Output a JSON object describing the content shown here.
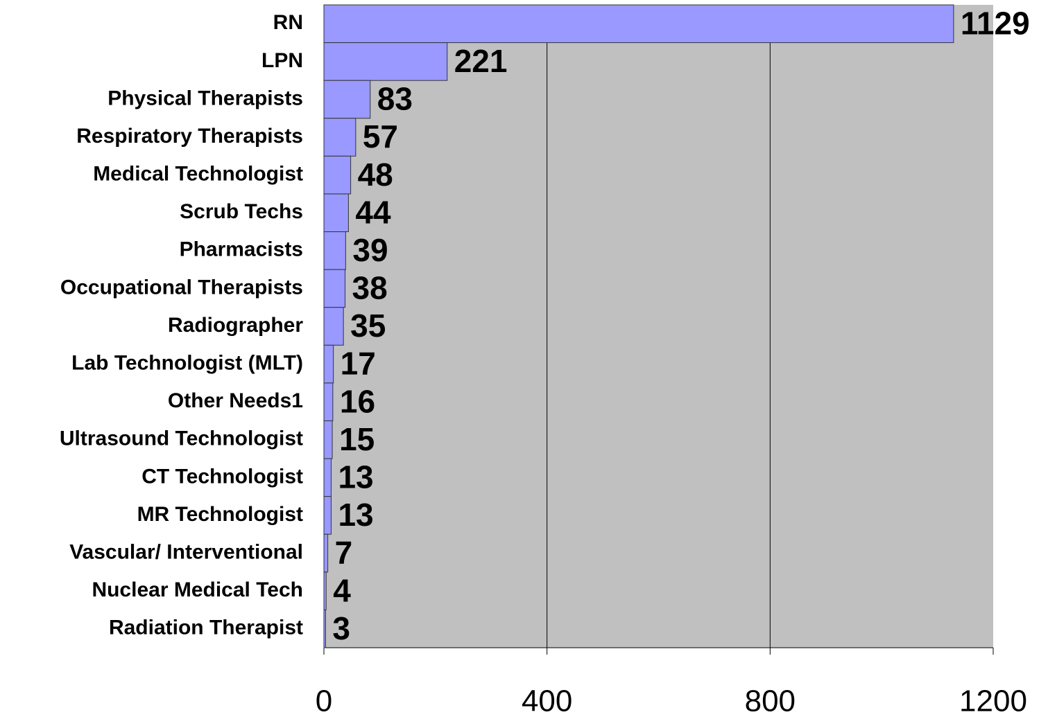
{
  "chart_data": {
    "type": "bar",
    "horizontal": true,
    "categories": [
      "RN",
      "LPN",
      "Physical Therapists",
      "Respiratory Therapists",
      "Medical Technologist",
      "Scrub Techs",
      "Pharmacists",
      "Occupational Therapists",
      "Radiographer",
      "Lab Technologist (MLT)",
      "Other Needs1",
      "Ultrasound Technologist",
      "CT Technologist",
      "MR Technologist",
      "Vascular/ Interventional",
      "Nuclear Medical Tech",
      "Radiation Therapist"
    ],
    "values": [
      1129,
      221,
      83,
      57,
      48,
      44,
      39,
      38,
      35,
      17,
      16,
      15,
      13,
      13,
      7,
      4,
      3
    ],
    "color": "#9999ff",
    "background": "#c0c0c0",
    "xlim": [
      0,
      1200
    ],
    "xticks": [
      0,
      400,
      800,
      1200
    ],
    "grid": true
  }
}
